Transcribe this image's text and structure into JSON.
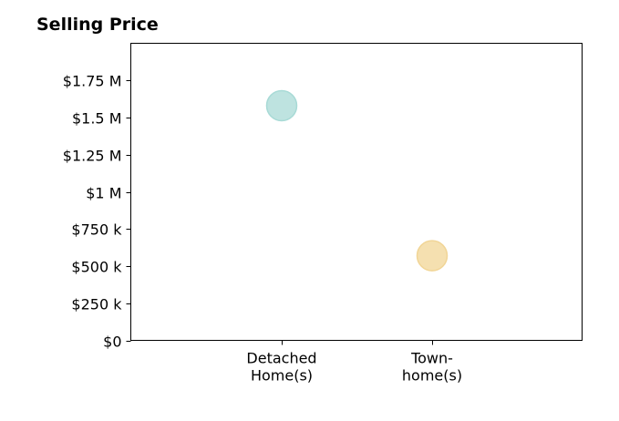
{
  "chart_data": {
    "type": "scatter",
    "title": "Selling Price",
    "xlabel": "",
    "ylabel": "",
    "categories": [
      [
        "Detached",
        "Home(s)"
      ],
      [
        "Town-",
        "home(s)"
      ]
    ],
    "ylim": [
      0,
      2000000
    ],
    "y_ticks": [
      0,
      250000,
      500000,
      750000,
      1000000,
      1250000,
      1500000,
      1750000
    ],
    "y_tick_labels": [
      "$0",
      "$250 k",
      "$500 k",
      "$750 k",
      "$1 M",
      "$1.25 M",
      "$1.5 M",
      "$1.75 M"
    ],
    "points": [
      {
        "category_index": 0,
        "value": 1580000,
        "color": "#a8dad6"
      },
      {
        "category_index": 1,
        "value": 570000,
        "color": "#f1d596"
      }
    ],
    "grid": false,
    "legend": "none"
  }
}
